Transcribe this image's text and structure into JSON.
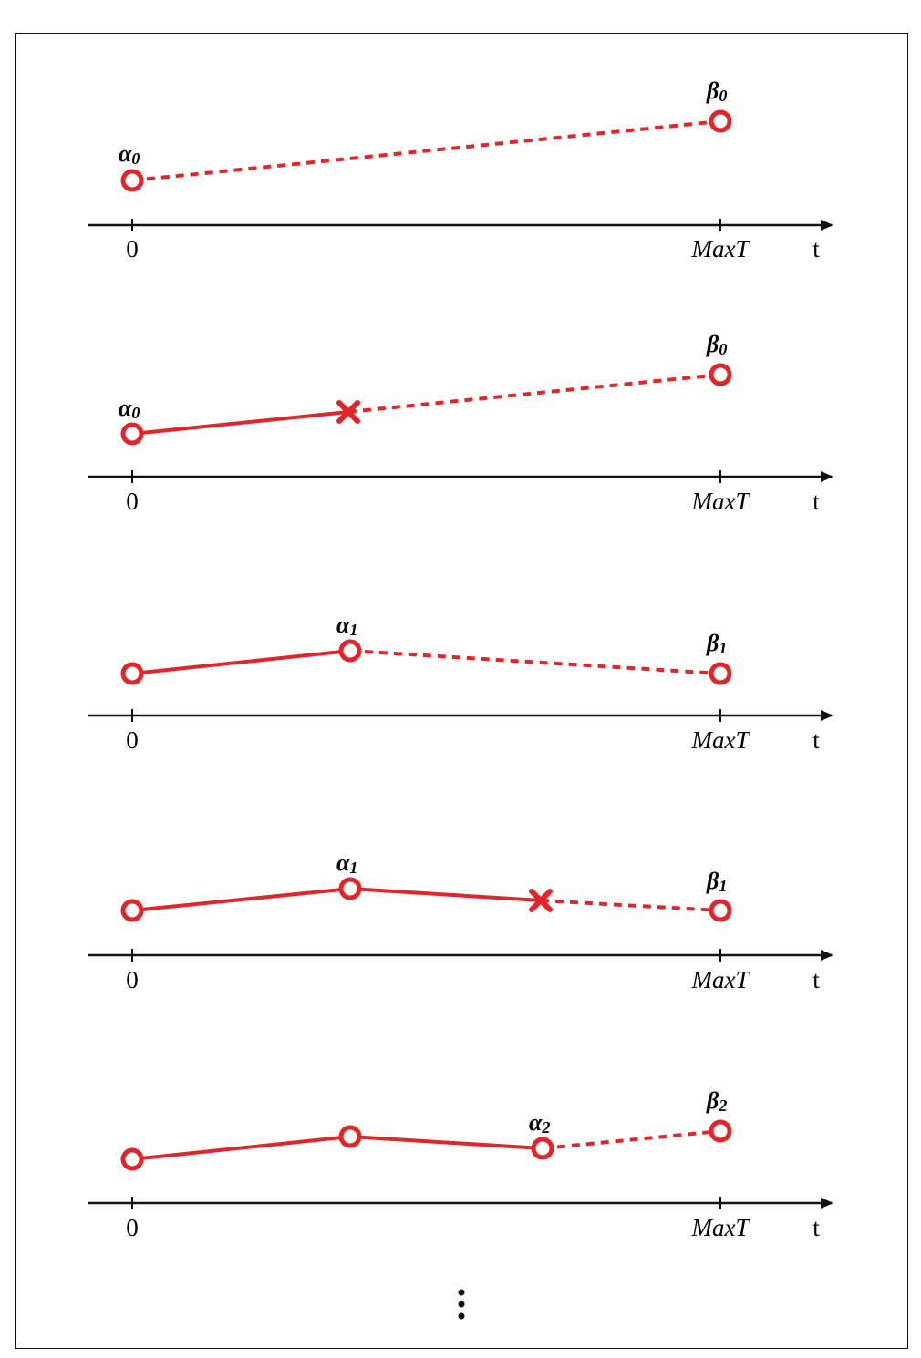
{
  "colors": {
    "line": "#e0262a",
    "axis": "#111111"
  },
  "axis": {
    "zero_label": "0",
    "max_label": "MaxT",
    "var_label": "t"
  },
  "panels": [
    {
      "labels": [
        {
          "base": "α",
          "sub": "0",
          "at": "first_point"
        },
        {
          "base": "β",
          "sub": "0",
          "at": "last_point"
        }
      ],
      "description": "alpha_0 at t=0 projected dashed to beta_0 at MaxT"
    },
    {
      "labels": [
        {
          "base": "α",
          "sub": "0",
          "at": "first_point"
        },
        {
          "base": "β",
          "sub": "0",
          "at": "last_point"
        }
      ]
    },
    {
      "labels": [
        {
          "base": "α",
          "sub": "1",
          "at": "second_point"
        },
        {
          "base": "β",
          "sub": "1",
          "at": "last_point"
        }
      ]
    },
    {
      "labels": [
        {
          "base": "α",
          "sub": "1",
          "at": "second_point"
        },
        {
          "base": "β",
          "sub": "1",
          "at": "last_point"
        }
      ]
    },
    {
      "labels": [
        {
          "base": "α",
          "sub": "2",
          "at": "third_point"
        },
        {
          "base": "β",
          "sub": "2",
          "at": "last_point"
        }
      ]
    }
  ],
  "continuation": "⋮"
}
